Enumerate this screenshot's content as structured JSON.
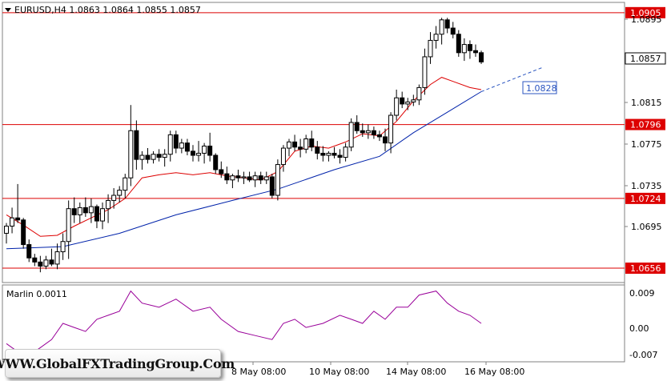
{
  "header": {
    "symbol_info": "EURUSD,H4  1.0863 1.0864 1.0855 1.0857"
  },
  "price_axis": {
    "ticks": [
      "1.0895",
      "1.0815",
      "1.0775",
      "1.0735",
      "1.0695"
    ]
  },
  "levels": [
    {
      "label": "1.0905",
      "price": 1.0905,
      "color": "#dd0000"
    },
    {
      "label": "1.0796",
      "price": 1.0796,
      "color": "#dd0000"
    },
    {
      "label": "1.0724",
      "price": 1.0724,
      "color": "#dd0000"
    },
    {
      "label": "1.0656",
      "price": 1.0656,
      "color": "#dd0000"
    }
  ],
  "current_price": {
    "label": "1.0857",
    "price": 1.0857
  },
  "target_label": {
    "label": "1.0828",
    "price": 1.0828
  },
  "oscillator": {
    "title": "Marlin 0.0011",
    "ticks": [
      "0.009",
      "0.00",
      "-0.007"
    ]
  },
  "time_axis": {
    "labels": [
      "8 May 08:00",
      "10 May 08:00",
      "14 May 08:00",
      "16 May 08:00"
    ]
  },
  "watermark": {
    "text": "WWW.GlobalFXTradingGroup.Com"
  },
  "colors": {
    "bull": "#ffffff",
    "bear": "#000000",
    "ma_fast": "#dd0000",
    "ma_slow": "#0022aa",
    "osc": "#990099",
    "level": "#dd0000"
  },
  "chart_data": {
    "type": "candlestick",
    "candles": [
      [
        1.069,
        1.07,
        1.068,
        1.0697
      ],
      [
        1.0697,
        1.0715,
        1.069,
        1.0705
      ],
      [
        1.0705,
        1.0738,
        1.07,
        1.0703
      ],
      [
        1.0703,
        1.0705,
        1.0675,
        1.0679
      ],
      [
        1.0679,
        1.0684,
        1.0662,
        1.0666
      ],
      [
        1.0666,
        1.067,
        1.0658,
        1.0662
      ],
      [
        1.0662,
        1.0668,
        1.0652,
        1.0658
      ],
      [
        1.0658,
        1.0668,
        1.0655,
        1.0664
      ],
      [
        1.0664,
        1.0675,
        1.0658,
        1.066
      ],
      [
        1.066,
        1.068,
        1.0655,
        1.0672
      ],
      [
        1.0672,
        1.069,
        1.0664,
        1.0682
      ],
      [
        1.0682,
        1.0722,
        1.0665,
        1.0714
      ],
      [
        1.0714,
        1.0725,
        1.07,
        1.0708
      ],
      [
        1.0708,
        1.072,
        1.07,
        1.0715
      ],
      [
        1.0715,
        1.0725,
        1.0706,
        1.071
      ],
      [
        1.071,
        1.0724,
        1.07,
        1.0716
      ],
      [
        1.0716,
        1.0718,
        1.0695,
        1.0702
      ],
      [
        1.0702,
        1.072,
        1.0694,
        1.0714
      ],
      [
        1.0714,
        1.0728,
        1.07,
        1.0722
      ],
      [
        1.0722,
        1.0734,
        1.0714,
        1.0727
      ],
      [
        1.0727,
        1.0736,
        1.072,
        1.0732
      ],
      [
        1.0732,
        1.0748,
        1.0724,
        1.0744
      ],
      [
        1.0744,
        1.0815,
        1.0736,
        1.079
      ],
      [
        1.079,
        1.08,
        1.0752,
        1.0762
      ],
      [
        1.0762,
        1.077,
        1.0752,
        1.0766
      ],
      [
        1.0766,
        1.0773,
        1.0758,
        1.0762
      ],
      [
        1.0762,
        1.077,
        1.0758,
        1.0767
      ],
      [
        1.0767,
        1.0772,
        1.076,
        1.0764
      ],
      [
        1.0764,
        1.0772,
        1.0755,
        1.0767
      ],
      [
        1.0767,
        1.079,
        1.076,
        1.0786
      ],
      [
        1.0786,
        1.079,
        1.0768,
        1.0773
      ],
      [
        1.0773,
        1.0782,
        1.0768,
        1.0778
      ],
      [
        1.0778,
        1.0782,
        1.0766,
        1.077
      ],
      [
        1.077,
        1.0776,
        1.076,
        1.0766
      ],
      [
        1.0766,
        1.078,
        1.076,
        1.0768
      ],
      [
        1.0768,
        1.0778,
        1.0758,
        1.0775
      ],
      [
        1.0775,
        1.0788,
        1.076,
        1.0766
      ],
      [
        1.0766,
        1.0768,
        1.0748,
        1.0752
      ],
      [
        1.0752,
        1.076,
        1.0744,
        1.0748
      ],
      [
        1.0748,
        1.0755,
        1.0738,
        1.0742
      ],
      [
        1.0742,
        1.0748,
        1.0734,
        1.0746
      ],
      [
        1.0746,
        1.0752,
        1.074,
        1.0744
      ],
      [
        1.0744,
        1.075,
        1.0738,
        1.0745
      ],
      [
        1.0745,
        1.075,
        1.074,
        1.0742
      ],
      [
        1.0742,
        1.075,
        1.0735,
        1.0746
      ],
      [
        1.0746,
        1.075,
        1.0738,
        1.0742
      ],
      [
        1.0742,
        1.075,
        1.0738,
        1.0745
      ],
      [
        1.0745,
        1.0748,
        1.0724,
        1.0727
      ],
      [
        1.0727,
        1.0762,
        1.0722,
        1.0757
      ],
      [
        1.0757,
        1.0776,
        1.075,
        1.0773
      ],
      [
        1.0773,
        1.0782,
        1.0765,
        1.0779
      ],
      [
        1.0779,
        1.0786,
        1.077,
        1.0774
      ],
      [
        1.0774,
        1.0782,
        1.0764,
        1.0772
      ],
      [
        1.0772,
        1.0786,
        1.0768,
        1.0782
      ],
      [
        1.0782,
        1.079,
        1.077,
        1.0774
      ],
      [
        1.0774,
        1.078,
        1.0762,
        1.0768
      ],
      [
        1.0768,
        1.0775,
        1.076,
        1.0766
      ],
      [
        1.0766,
        1.077,
        1.076,
        1.0768
      ],
      [
        1.0768,
        1.0774,
        1.0763,
        1.0766
      ],
      [
        1.0766,
        1.0772,
        1.0758,
        1.0764
      ],
      [
        1.0764,
        1.0778,
        1.076,
        1.0774
      ],
      [
        1.0774,
        1.0802,
        1.077,
        1.0798
      ],
      [
        1.0798,
        1.0805,
        1.0787,
        1.079
      ],
      [
        1.079,
        1.0797,
        1.0784,
        1.0788
      ],
      [
        1.0788,
        1.0796,
        1.0782,
        1.079
      ],
      [
        1.079,
        1.0794,
        1.0782,
        1.0786
      ],
      [
        1.0786,
        1.079,
        1.078,
        1.0784
      ],
      [
        1.0784,
        1.0792,
        1.077,
        1.0778
      ],
      [
        1.0778,
        1.0808,
        1.0768,
        1.0805
      ],
      [
        1.0805,
        1.083,
        1.08,
        1.0822
      ],
      [
        1.0822,
        1.0828,
        1.0812,
        1.0816
      ],
      [
        1.0816,
        1.0822,
        1.081,
        1.0818
      ],
      [
        1.0818,
        1.0825,
        1.0814,
        1.082
      ],
      [
        1.082,
        1.0835,
        1.0815,
        1.0832
      ],
      [
        1.0832,
        1.087,
        1.0825,
        1.0862
      ],
      [
        1.0862,
        1.0886,
        1.0855,
        1.0878
      ],
      [
        1.0878,
        1.0892,
        1.087,
        1.0884
      ],
      [
        1.0884,
        1.09,
        1.0874,
        1.0898
      ],
      [
        1.0898,
        1.09,
        1.0885,
        1.089
      ],
      [
        1.089,
        1.0896,
        1.088,
        1.0884
      ],
      [
        1.0884,
        1.0888,
        1.0862,
        1.0866
      ],
      [
        1.0866,
        1.088,
        1.0858,
        1.0874
      ],
      [
        1.0874,
        1.0878,
        1.086,
        1.0868
      ],
      [
        1.0868,
        1.0874,
        1.0862,
        1.0866
      ],
      [
        1.0866,
        1.0868,
        1.0855,
        1.0857
      ]
    ],
    "ma_fast": [
      [
        0,
        1.0708
      ],
      [
        3,
        1.0698
      ],
      [
        6,
        1.0687
      ],
      [
        9,
        1.0688
      ],
      [
        12,
        1.0697
      ],
      [
        15,
        1.0705
      ],
      [
        18,
        1.0713
      ],
      [
        21,
        1.0724
      ],
      [
        24,
        1.0744
      ],
      [
        27,
        1.0747
      ],
      [
        30,
        1.0749
      ],
      [
        33,
        1.0747
      ],
      [
        36,
        1.0749
      ],
      [
        39,
        1.0746
      ],
      [
        42,
        1.0744
      ],
      [
        45,
        1.0742
      ],
      [
        48,
        1.075
      ],
      [
        51,
        1.077
      ],
      [
        54,
        1.0775
      ],
      [
        57,
        1.0773
      ],
      [
        60,
        1.0779
      ],
      [
        63,
        1.0787
      ],
      [
        66,
        1.0785
      ],
      [
        69,
        1.0799
      ],
      [
        72,
        1.0819
      ],
      [
        75,
        1.0835
      ],
      [
        77,
        1.0842
      ],
      [
        79,
        1.0838
      ],
      [
        82,
        1.0832
      ],
      [
        84,
        1.083
      ]
    ],
    "ma_slow": [
      [
        0,
        1.0675
      ],
      [
        10,
        1.0677
      ],
      [
        20,
        1.069
      ],
      [
        30,
        1.0708
      ],
      [
        40,
        1.0722
      ],
      [
        48,
        1.0733
      ],
      [
        58,
        1.0752
      ],
      [
        66,
        1.0765
      ],
      [
        72,
        1.0788
      ],
      [
        78,
        1.0808
      ],
      [
        84,
        1.0828
      ]
    ],
    "projection": [
      [
        84,
        1.0828
      ],
      [
        95,
        1.0852
      ]
    ],
    "oscillator": [
      [
        0,
        -0.004
      ],
      [
        2,
        -0.006
      ],
      [
        4,
        -0.007
      ],
      [
        6,
        -0.005
      ],
      [
        8,
        -0.003
      ],
      [
        10,
        0.001
      ],
      [
        12,
        0.0
      ],
      [
        14,
        -0.001
      ],
      [
        16,
        0.002
      ],
      [
        18,
        0.003
      ],
      [
        20,
        0.004
      ],
      [
        22,
        0.009
      ],
      [
        24,
        0.006
      ],
      [
        27,
        0.005
      ],
      [
        30,
        0.007
      ],
      [
        33,
        0.004
      ],
      [
        36,
        0.005
      ],
      [
        38,
        0.002
      ],
      [
        41,
        -0.001
      ],
      [
        44,
        -0.002
      ],
      [
        47,
        -0.003
      ],
      [
        49,
        0.001
      ],
      [
        51,
        0.002
      ],
      [
        53,
        0.0
      ],
      [
        56,
        0.001
      ],
      [
        59,
        0.003
      ],
      [
        61,
        0.002
      ],
      [
        63,
        0.001
      ],
      [
        65,
        0.004
      ],
      [
        67,
        0.002
      ],
      [
        69,
        0.005
      ],
      [
        71,
        0.005
      ],
      [
        73,
        0.008
      ],
      [
        76,
        0.009
      ],
      [
        78,
        0.006
      ],
      [
        80,
        0.004
      ],
      [
        82,
        0.003
      ],
      [
        84,
        0.001
      ]
    ],
    "ylim": [
      1.0642,
      1.0915
    ],
    "osc_ylim": [
      -0.0085,
      0.0105
    ]
  }
}
